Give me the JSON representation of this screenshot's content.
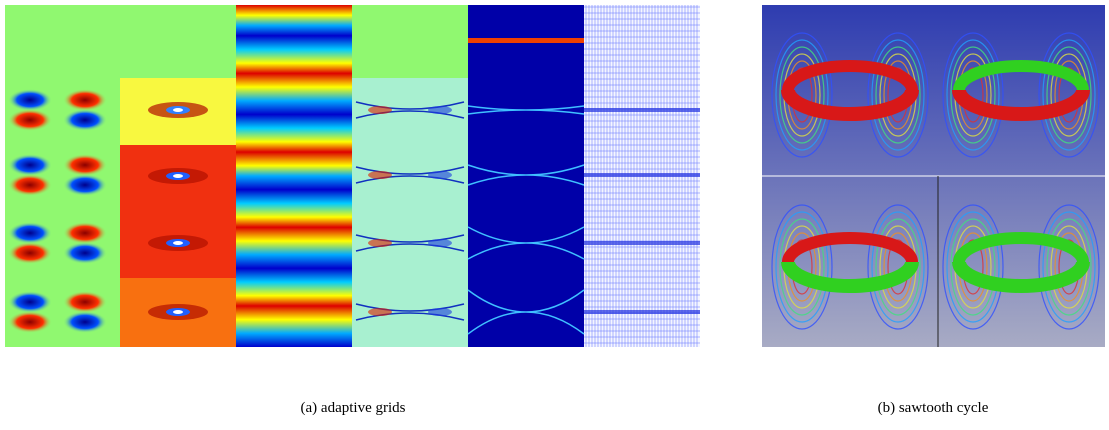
{
  "figure": {
    "subfigures": [
      {
        "caption": "(a) adaptive grids"
      },
      {
        "caption": "(b) sawtooth cycle"
      }
    ]
  }
}
